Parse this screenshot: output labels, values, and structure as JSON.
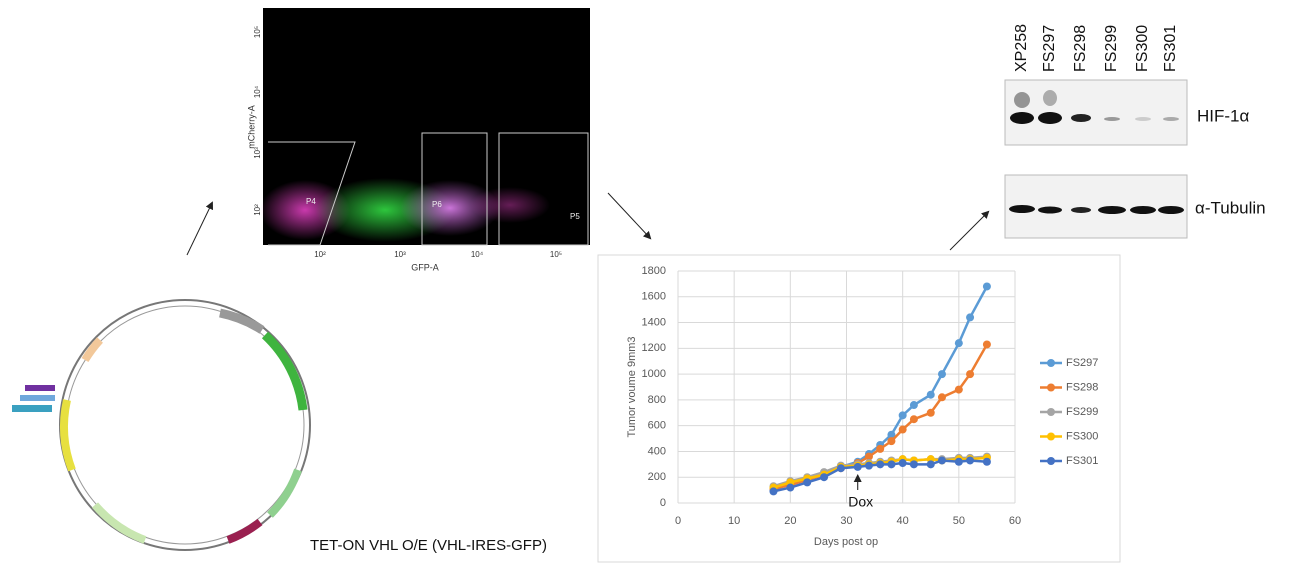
{
  "chart_data": {
    "type": "line",
    "x_label": "Days post op",
    "y_label": "Tumor voume 9mm3",
    "x": [
      17,
      20,
      23,
      26,
      29,
      32,
      34,
      36,
      38,
      40,
      42,
      45,
      47,
      50,
      52,
      55
    ],
    "series": [
      {
        "name": "FS297",
        "color": "#5b9bd5",
        "values": [
          100,
          150,
          190,
          230,
          280,
          320,
          380,
          450,
          530,
          680,
          760,
          840,
          1000,
          1240,
          1440,
          1680
        ]
      },
      {
        "name": "FS298",
        "color": "#ed7d31",
        "values": [
          110,
          140,
          180,
          220,
          270,
          310,
          360,
          420,
          480,
          570,
          650,
          700,
          820,
          880,
          1000,
          1230
        ]
      },
      {
        "name": "FS299",
        "color": "#a5a5a5",
        "values": [
          130,
          170,
          200,
          240,
          290,
          300,
          310,
          320,
          330,
          340,
          330,
          340,
          340,
          350,
          350,
          360
        ]
      },
      {
        "name": "FS300",
        "color": "#ffc000",
        "values": [
          120,
          160,
          190,
          220,
          280,
          290,
          300,
          310,
          320,
          340,
          330,
          340,
          330,
          340,
          340,
          350
        ]
      },
      {
        "name": "FS301",
        "color": "#4472c4",
        "values": [
          90,
          120,
          160,
          200,
          270,
          280,
          290,
          300,
          300,
          310,
          300,
          300,
          330,
          320,
          330,
          320
        ]
      }
    ],
    "xlim": [
      0,
      60
    ],
    "xticks": [
      0,
      10,
      20,
      30,
      40,
      50,
      60
    ],
    "ylim": [
      0,
      1800
    ],
    "yticks": [
      0,
      200,
      400,
      600,
      800,
      1000,
      1200,
      1400,
      1600,
      1800
    ],
    "grid": true,
    "legend": "right",
    "annotation": {
      "text": "Dox",
      "x": 32
    }
  },
  "flow": {
    "x_label": "GFP-A",
    "y_label": "mCherry-A",
    "xticks": [
      "10²",
      "10³",
      "10⁴",
      "10⁵"
    ],
    "yticks": [
      "10²",
      "10³",
      "10⁴",
      "10⁵"
    ],
    "gates": [
      "P4",
      "P6",
      "P5"
    ]
  },
  "blot": {
    "lanes": [
      "XP258",
      "FS297",
      "FS298",
      "FS299",
      "FS300",
      "FS301"
    ],
    "bands": [
      "HIF-1α",
      "α-Tubulin"
    ]
  },
  "plasmid": {
    "caption": "TET-ON VHL O/E (VHL-IRES-GFP)"
  }
}
